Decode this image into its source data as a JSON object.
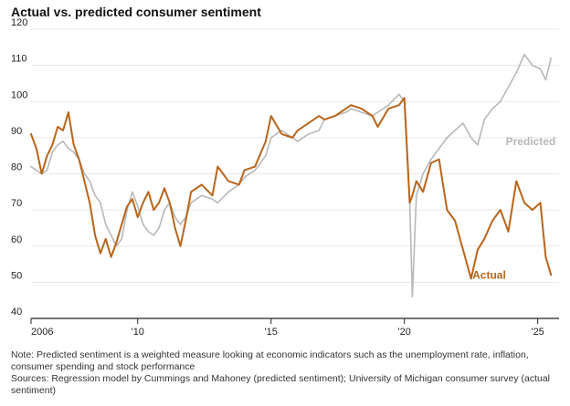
{
  "chart_data": {
    "type": "line",
    "title": "Actual vs. predicted consumer sentiment",
    "xlabel": "",
    "ylabel": "",
    "xlim": [
      2006,
      2025.8
    ],
    "ylim": [
      40,
      120
    ],
    "yticks": [
      40,
      50,
      60,
      70,
      80,
      90,
      100,
      110,
      120
    ],
    "xticks": [
      {
        "value": 2006,
        "label": "2006"
      },
      {
        "value": 2010,
        "label": "'10"
      },
      {
        "value": 2015,
        "label": "'15"
      },
      {
        "value": 2020,
        "label": "'20"
      },
      {
        "value": 2025,
        "label": "'25"
      }
    ],
    "grid": "horizontal",
    "legend": "direct-labels",
    "series": [
      {
        "name": "Predicted",
        "color": "#b8b8b8",
        "label_position": {
          "x": 2023.8,
          "y": 88
        },
        "points": [
          [
            2006.0,
            82
          ],
          [
            2006.2,
            81
          ],
          [
            2006.4,
            80
          ],
          [
            2006.6,
            81
          ],
          [
            2006.8,
            86
          ],
          [
            2007.0,
            88
          ],
          [
            2007.2,
            89
          ],
          [
            2007.4,
            87
          ],
          [
            2007.6,
            86
          ],
          [
            2007.8,
            84
          ],
          [
            2008.0,
            80
          ],
          [
            2008.2,
            78
          ],
          [
            2008.4,
            74
          ],
          [
            2008.6,
            72
          ],
          [
            2008.8,
            66
          ],
          [
            2009.0,
            63
          ],
          [
            2009.2,
            60
          ],
          [
            2009.4,
            62
          ],
          [
            2009.6,
            70
          ],
          [
            2009.8,
            75
          ],
          [
            2010.0,
            71
          ],
          [
            2010.2,
            66
          ],
          [
            2010.4,
            64
          ],
          [
            2010.6,
            63
          ],
          [
            2010.8,
            65
          ],
          [
            2011.0,
            70
          ],
          [
            2011.2,
            72
          ],
          [
            2011.4,
            68
          ],
          [
            2011.6,
            66
          ],
          [
            2011.8,
            68
          ],
          [
            2012.0,
            72
          ],
          [
            2012.4,
            74
          ],
          [
            2012.8,
            73
          ],
          [
            2013.0,
            72
          ],
          [
            2013.4,
            75
          ],
          [
            2013.8,
            77
          ],
          [
            2014.0,
            79
          ],
          [
            2014.4,
            81
          ],
          [
            2014.8,
            85
          ],
          [
            2015.0,
            90
          ],
          [
            2015.4,
            92
          ],
          [
            2015.8,
            90
          ],
          [
            2016.0,
            89
          ],
          [
            2016.4,
            91
          ],
          [
            2016.8,
            92
          ],
          [
            2017.0,
            95
          ],
          [
            2017.4,
            96
          ],
          [
            2017.8,
            97
          ],
          [
            2018.0,
            98
          ],
          [
            2018.4,
            97
          ],
          [
            2018.8,
            96
          ],
          [
            2019.0,
            97
          ],
          [
            2019.4,
            99
          ],
          [
            2019.8,
            102
          ],
          [
            2020.0,
            100
          ],
          [
            2020.2,
            72
          ],
          [
            2020.3,
            46
          ],
          [
            2020.45,
            74
          ],
          [
            2020.7,
            80
          ],
          [
            2021.0,
            84
          ],
          [
            2021.3,
            87
          ],
          [
            2021.6,
            90
          ],
          [
            2021.9,
            92
          ],
          [
            2022.2,
            94
          ],
          [
            2022.5,
            90
          ],
          [
            2022.75,
            88
          ],
          [
            2023.0,
            95
          ],
          [
            2023.3,
            98
          ],
          [
            2023.6,
            100
          ],
          [
            2023.9,
            104
          ],
          [
            2024.2,
            108
          ],
          [
            2024.5,
            113
          ],
          [
            2024.8,
            110
          ],
          [
            2025.1,
            109
          ],
          [
            2025.3,
            106
          ],
          [
            2025.5,
            112
          ]
        ]
      },
      {
        "name": "Actual",
        "color": "#b8651b",
        "label_position": {
          "x": 2022.55,
          "y": 51
        },
        "points": [
          [
            2006.0,
            91
          ],
          [
            2006.2,
            87
          ],
          [
            2006.4,
            80
          ],
          [
            2006.6,
            85
          ],
          [
            2006.8,
            88
          ],
          [
            2007.0,
            93
          ],
          [
            2007.2,
            92
          ],
          [
            2007.4,
            97
          ],
          [
            2007.6,
            88
          ],
          [
            2007.8,
            84
          ],
          [
            2008.0,
            78
          ],
          [
            2008.2,
            72
          ],
          [
            2008.4,
            63
          ],
          [
            2008.6,
            58
          ],
          [
            2008.8,
            62
          ],
          [
            2009.0,
            57
          ],
          [
            2009.2,
            61
          ],
          [
            2009.4,
            66
          ],
          [
            2009.6,
            71
          ],
          [
            2009.8,
            73
          ],
          [
            2010.0,
            68
          ],
          [
            2010.2,
            72
          ],
          [
            2010.4,
            75
          ],
          [
            2010.6,
            70
          ],
          [
            2010.8,
            72
          ],
          [
            2011.0,
            76
          ],
          [
            2011.2,
            72
          ],
          [
            2011.4,
            65
          ],
          [
            2011.6,
            60
          ],
          [
            2011.8,
            67
          ],
          [
            2012.0,
            75
          ],
          [
            2012.4,
            77
          ],
          [
            2012.8,
            74
          ],
          [
            2013.0,
            82
          ],
          [
            2013.4,
            78
          ],
          [
            2013.8,
            77
          ],
          [
            2014.0,
            81
          ],
          [
            2014.4,
            82
          ],
          [
            2014.8,
            89
          ],
          [
            2015.0,
            96
          ],
          [
            2015.4,
            91
          ],
          [
            2015.8,
            90
          ],
          [
            2016.0,
            92
          ],
          [
            2016.4,
            94
          ],
          [
            2016.8,
            96
          ],
          [
            2017.0,
            95
          ],
          [
            2017.4,
            96
          ],
          [
            2017.8,
            98
          ],
          [
            2018.0,
            99
          ],
          [
            2018.4,
            98
          ],
          [
            2018.8,
            96
          ],
          [
            2019.0,
            93
          ],
          [
            2019.4,
            98
          ],
          [
            2019.8,
            99
          ],
          [
            2020.0,
            101
          ],
          [
            2020.2,
            72
          ],
          [
            2020.3,
            74
          ],
          [
            2020.45,
            78
          ],
          [
            2020.7,
            75
          ],
          [
            2021.0,
            83
          ],
          [
            2021.3,
            84
          ],
          [
            2021.6,
            70
          ],
          [
            2021.9,
            67
          ],
          [
            2022.2,
            59
          ],
          [
            2022.5,
            51
          ],
          [
            2022.75,
            59
          ],
          [
            2023.0,
            62
          ],
          [
            2023.3,
            67
          ],
          [
            2023.6,
            70
          ],
          [
            2023.9,
            64
          ],
          [
            2024.2,
            78
          ],
          [
            2024.5,
            72
          ],
          [
            2024.8,
            70
          ],
          [
            2025.1,
            72
          ],
          [
            2025.3,
            57
          ],
          [
            2025.5,
            52
          ]
        ]
      }
    ],
    "notes": [
      "Note: Predicted sentiment is a weighted measure looking at economic indicators such as the unemployment rate, inflation, consumer spending and stock performance",
      "Sources: Regression model by Cummings and Mahoney (predicted sentiment); University of Michigan consumer survey (actual sentiment)"
    ]
  }
}
